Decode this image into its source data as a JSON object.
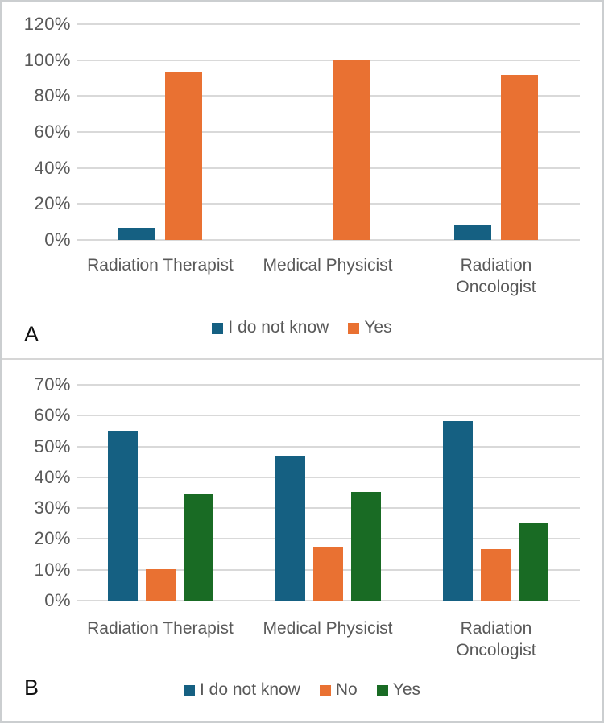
{
  "figure": {
    "description_title": "",
    "panel_labels": [
      "A",
      "B"
    ]
  },
  "colors": {
    "blue": "#156082",
    "orange": "#E97132",
    "green": "#196B24",
    "gridline": "#D9D9D9",
    "axis_text": "#595959",
    "legend_text": "#595959",
    "panel_letter": "#111111",
    "frame_border": "#CBCED0",
    "panel_divider": "#D6D6D6"
  },
  "chart_data": [
    {
      "panel_label": "A",
      "type": "bar",
      "title": "",
      "xlabel": "",
      "ylabel": "",
      "unit": "percent",
      "categories": [
        "Radiation Therapist",
        "Medical Physicist",
        "Radiation Oncologist"
      ],
      "category_label_lines": [
        [
          "Radiation Therapist"
        ],
        [
          "Medical Physicist"
        ],
        [
          "Radiation",
          "Oncologist"
        ]
      ],
      "series": [
        {
          "name": "I do not know",
          "color": "#156082",
          "values": [
            6.9,
            0,
            8.3
          ]
        },
        {
          "name": "Yes",
          "color": "#E97132",
          "values": [
            93.1,
            100,
            91.7
          ]
        }
      ],
      "ylim": [
        0,
        120
      ],
      "ytick_step": 20,
      "ytick_labels": [
        "0%",
        "20%",
        "40%",
        "60%",
        "80%",
        "100%",
        "120%"
      ],
      "grid": true,
      "legend_position": "bottom"
    },
    {
      "panel_label": "B",
      "type": "bar",
      "title": "",
      "xlabel": "",
      "ylabel": "",
      "unit": "percent",
      "categories": [
        "Radiation Therapist",
        "Medical Physicist",
        "Radiation Oncologist"
      ],
      "category_label_lines": [
        [
          "Radiation Therapist"
        ],
        [
          "Medical Physicist"
        ],
        [
          "Radiation",
          "Oncologist"
        ]
      ],
      "series": [
        {
          "name": "I do not know",
          "color": "#156082",
          "values": [
            55.2,
            47.1,
            58.3
          ]
        },
        {
          "name": "No",
          "color": "#E97132",
          "values": [
            10.3,
            17.6,
            16.7
          ]
        },
        {
          "name": "Yes",
          "color": "#196B24",
          "values": [
            34.5,
            35.3,
            25.0
          ]
        }
      ],
      "ylim": [
        0,
        70
      ],
      "ytick_step": 10,
      "ytick_labels": [
        "0%",
        "10%",
        "20%",
        "30%",
        "40%",
        "50%",
        "60%",
        "70%"
      ],
      "grid": true,
      "legend_position": "bottom"
    }
  ]
}
